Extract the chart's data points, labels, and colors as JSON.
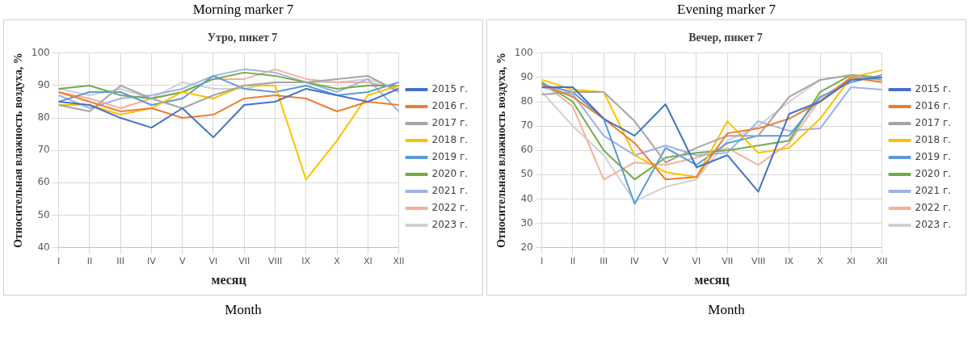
{
  "chart_data": [
    {
      "type": "line",
      "subtitle": "Morning marker 7",
      "title": "Утро, пикет 7",
      "xlabel": "месяц",
      "ylabel": "Относительная влажность воздуха, %",
      "annotations": [
        "Month"
      ],
      "categories": [
        "I",
        "II",
        "III",
        "IV",
        "V",
        "VI",
        "VII",
        "VIII",
        "IX",
        "X",
        "XI",
        "XII"
      ],
      "ylim": [
        40,
        100
      ],
      "yticks": [
        40,
        50,
        60,
        70,
        80,
        90,
        100
      ],
      "grid": true,
      "legend": "right",
      "marker": "none",
      "line_style": "solid",
      "series": [
        {
          "name": "2015 г.",
          "color": "#4472c4",
          "values": [
            85,
            84,
            80,
            77,
            83,
            74,
            84,
            85,
            89,
            87,
            85,
            89
          ]
        },
        {
          "name": "2016 г.",
          "color": "#ed7d31",
          "values": [
            88,
            85,
            82,
            83,
            80,
            81,
            86,
            87,
            86,
            82,
            85,
            84
          ]
        },
        {
          "name": "2017 г.",
          "color": "#a5a5a5",
          "values": [
            84,
            82,
            90,
            86,
            83,
            87,
            90,
            91,
            91,
            92,
            93,
            88
          ]
        },
        {
          "name": "2018 г.",
          "color": "#ffc000",
          "values": [
            84,
            84,
            81,
            83,
            88,
            86,
            90,
            90,
            61,
            73,
            87,
            90
          ]
        },
        {
          "name": "2019 г.",
          "color": "#5b9bd5",
          "values": [
            85,
            88,
            88,
            84,
            86,
            93,
            89,
            88,
            90,
            87,
            88,
            91
          ]
        },
        {
          "name": "2020 г.",
          "color": "#70ad47",
          "values": [
            89,
            90,
            87,
            86,
            88,
            92,
            94,
            93,
            91,
            89,
            90,
            90
          ]
        },
        {
          "name": "2021 г.",
          "color": "#9db3e6",
          "values": [
            87,
            83,
            86,
            87,
            89,
            93,
            95,
            94,
            91,
            88,
            92,
            82
          ]
        },
        {
          "name": "2022 г.",
          "color": "#f4b19a",
          "values": [
            88,
            86,
            83,
            86,
            88,
            92,
            92,
            95,
            92,
            91,
            91,
            89
          ]
        },
        {
          "name": "2023 г.",
          "color": "#d0d0d0",
          "values": [
            89,
            87,
            89,
            86,
            91,
            89,
            89,
            91,
            91,
            91,
            92,
            89
          ]
        }
      ]
    },
    {
      "type": "line",
      "subtitle": "Evening marker 7",
      "title": "Вечер, пикет 7",
      "xlabel": "месяц",
      "ylabel": "Относительная влажность воздуха, %",
      "annotations": [
        "Month"
      ],
      "categories": [
        "I",
        "II",
        "III",
        "IV",
        "V",
        "VI",
        "VII",
        "VIII",
        "IX",
        "X",
        "XI",
        "XII"
      ],
      "ylim": [
        20,
        100
      ],
      "yticks": [
        20,
        30,
        40,
        50,
        60,
        70,
        80,
        90,
        100
      ],
      "grid": true,
      "legend": "right",
      "marker": "none",
      "line_style": "solid",
      "series": [
        {
          "name": "2015 г.",
          "color": "#4472c4",
          "values": [
            86,
            86,
            73,
            66,
            79,
            53,
            58,
            43,
            75,
            80,
            89,
            90
          ]
        },
        {
          "name": "2016 г.",
          "color": "#ed7d31",
          "values": [
            87,
            82,
            73,
            63,
            48,
            49,
            67,
            69,
            73,
            80,
            90,
            88
          ]
        },
        {
          "name": "2017 г.",
          "color": "#a5a5a5",
          "values": [
            83,
            84,
            84,
            72,
            55,
            61,
            66,
            66,
            82,
            89,
            91,
            89
          ]
        },
        {
          "name": "2018 г.",
          "color": "#ffc000",
          "values": [
            89,
            85,
            84,
            58,
            51,
            49,
            72,
            59,
            61,
            73,
            90,
            93
          ]
        },
        {
          "name": "2019 г.",
          "color": "#5b9bd5",
          "values": [
            87,
            84,
            73,
            38,
            61,
            54,
            63,
            66,
            66,
            82,
            88,
            91
          ]
        },
        {
          "name": "2020 г.",
          "color": "#70ad47",
          "values": [
            88,
            80,
            60,
            48,
            57,
            59,
            60,
            62,
            64,
            84,
            91,
            90
          ]
        },
        {
          "name": "2021 г.",
          "color": "#9db3e6",
          "values": [
            86,
            83,
            66,
            58,
            62,
            58,
            59,
            72,
            68,
            69,
            86,
            85
          ]
        },
        {
          "name": "2022 г.",
          "color": "#f4b19a",
          "values": [
            88,
            78,
            48,
            55,
            54,
            57,
            61,
            54,
            63,
            81,
            90,
            89
          ]
        },
        {
          "name": "2023 г.",
          "color": "#d0d0d0",
          "values": [
            84,
            70,
            58,
            39,
            45,
            48,
            64,
            70,
            80,
            89,
            91,
            90
          ]
        }
      ]
    }
  ]
}
